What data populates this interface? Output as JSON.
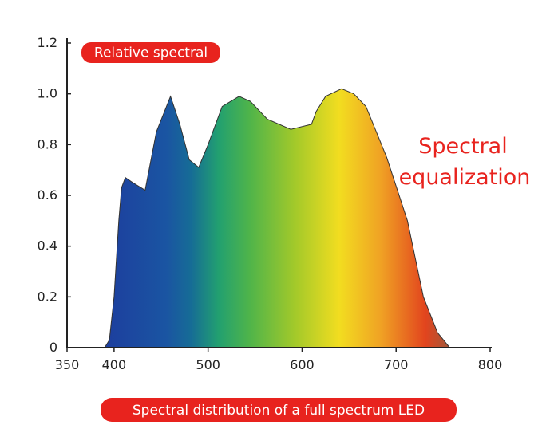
{
  "chart_data": {
    "type": "area",
    "title": "Spectral distribution of a full spectrum LED",
    "y_label": "Relative spectral",
    "annotation": [
      "Spectral",
      "equalization"
    ],
    "x": [
      390,
      395,
      400,
      405,
      408,
      412,
      420,
      433,
      445,
      460,
      470,
      480,
      490,
      500,
      515,
      533,
      545,
      563,
      588,
      610,
      615,
      625,
      642,
      655,
      668,
      690,
      712,
      729,
      744,
      757
    ],
    "values": [
      0,
      0.03,
      0.2,
      0.5,
      0.63,
      0.67,
      0.65,
      0.62,
      0.85,
      0.99,
      0.88,
      0.74,
      0.71,
      0.8,
      0.95,
      0.99,
      0.97,
      0.9,
      0.86,
      0.88,
      0.93,
      0.99,
      1.02,
      1.0,
      0.95,
      0.75,
      0.5,
      0.2,
      0.06,
      0
    ],
    "xlim": [
      350,
      800
    ],
    "xticks": [
      350,
      400,
      500,
      600,
      700,
      800
    ],
    "ylim": [
      0,
      1.2
    ],
    "yticks": [
      0,
      0.2,
      0.4,
      0.6,
      0.8,
      {
        "value": 1,
        "label": "1.0"
      },
      1.2
    ],
    "badge_color": "#e8231e"
  }
}
